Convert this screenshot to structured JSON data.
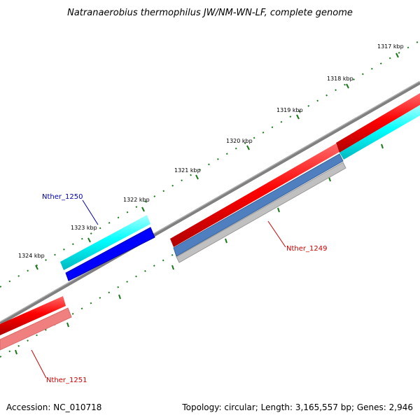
{
  "title": "Natranaerobius thermophilus JW/NM-WN-LF, complete genome",
  "footer": {
    "accession": "Accession: NC_010718",
    "stats": "Topology: circular; Length: 3,165,557 bp; Genes: 2,946"
  },
  "ruler_labels": [
    "1317 kbp",
    "1318 kbp",
    "1319 kbp",
    "1320 kbp",
    "1321 kbp",
    "1322 kbp",
    "1323 kbp",
    "1324 kbp"
  ],
  "genes": [
    {
      "name": "Nther_1250",
      "color": "#0000aa"
    },
    {
      "name": "Nther_1249",
      "color": "#cc0000"
    },
    {
      "name": "Nther_1251",
      "color": "#cc0000"
    }
  ],
  "colors": {
    "tick": "#1a7a1a",
    "backbone": "#808080",
    "forward_cds": "#ff0000",
    "forward_cds_secondary": "#00ffff",
    "reverse_cds": "#0000ff",
    "reverse_feature": "#4f7fbf",
    "light_red": "#f08080",
    "grey_feature": "#c0c0c0"
  }
}
